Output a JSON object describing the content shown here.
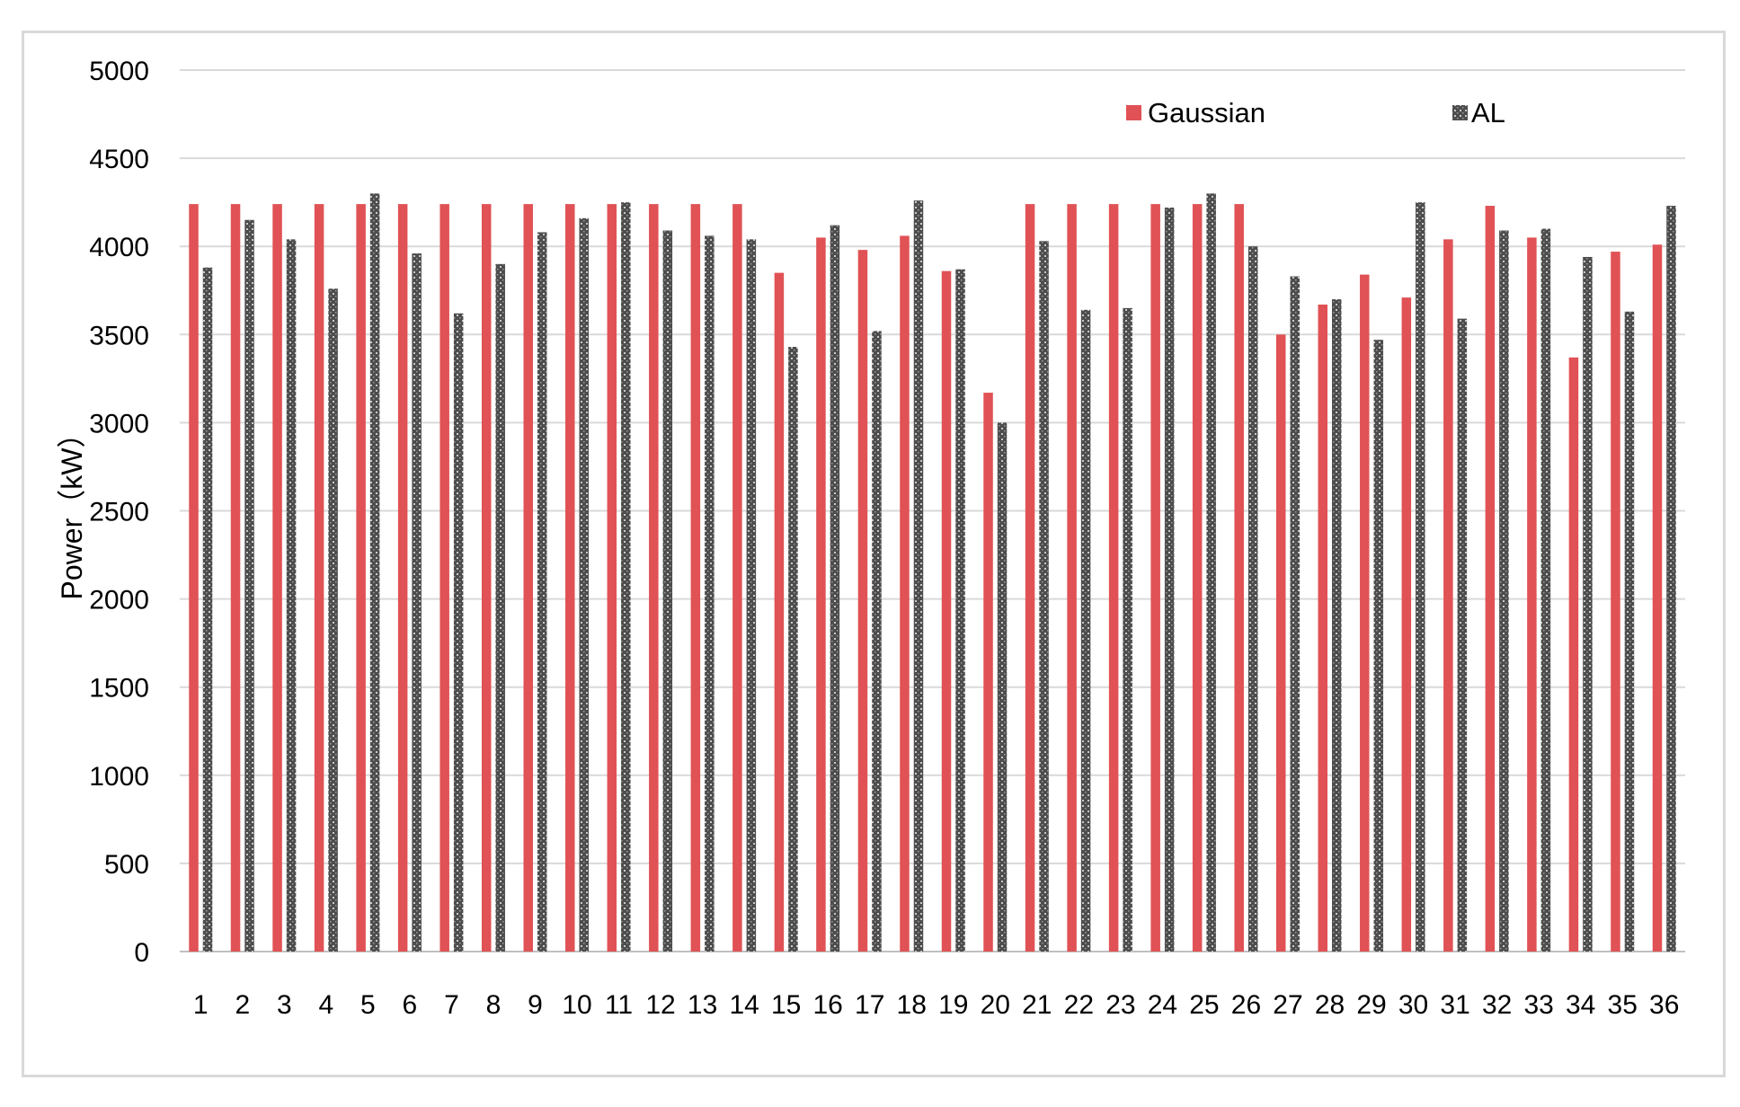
{
  "chart_data": {
    "type": "bar",
    "title": "",
    "xlabel": "",
    "ylabel": "Power（kW）",
    "ylim": [
      0,
      5000
    ],
    "yticks": [
      0,
      500,
      1000,
      1500,
      2000,
      2500,
      3000,
      3500,
      4000,
      4500,
      5000
    ],
    "grid": true,
    "legend_position": "top-right",
    "categories": [
      "1",
      "2",
      "3",
      "4",
      "5",
      "6",
      "7",
      "8",
      "9",
      "10",
      "11",
      "12",
      "13",
      "14",
      "15",
      "16",
      "17",
      "18",
      "19",
      "20",
      "21",
      "22",
      "23",
      "24",
      "25",
      "26",
      "27",
      "28",
      "29",
      "30",
      "31",
      "32",
      "33",
      "34",
      "35",
      "36"
    ],
    "series": [
      {
        "name": "Gaussian",
        "color": "#e05255",
        "pattern": "solid",
        "values": [
          4240,
          4240,
          4240,
          4240,
          4240,
          4240,
          4240,
          4240,
          4240,
          4240,
          4240,
          4240,
          4240,
          4240,
          3850,
          4050,
          3980,
          4060,
          3860,
          3170,
          4240,
          4240,
          4240,
          4240,
          4240,
          4240,
          3500,
          3670,
          3840,
          3710,
          4040,
          4230,
          4050,
          3370,
          3970,
          4010
        ]
      },
      {
        "name": "AL",
        "color": "#555555",
        "pattern": "dotted",
        "values": [
          3880,
          4150,
          4040,
          3760,
          4300,
          3960,
          3620,
          3900,
          4080,
          4160,
          4250,
          4090,
          4060,
          4040,
          3430,
          4120,
          3520,
          4260,
          3870,
          3000,
          4030,
          3640,
          3650,
          4220,
          4300,
          4000,
          3830,
          3700,
          3470,
          4250,
          3590,
          4090,
          4100,
          3940,
          3630,
          4230
        ]
      }
    ]
  }
}
